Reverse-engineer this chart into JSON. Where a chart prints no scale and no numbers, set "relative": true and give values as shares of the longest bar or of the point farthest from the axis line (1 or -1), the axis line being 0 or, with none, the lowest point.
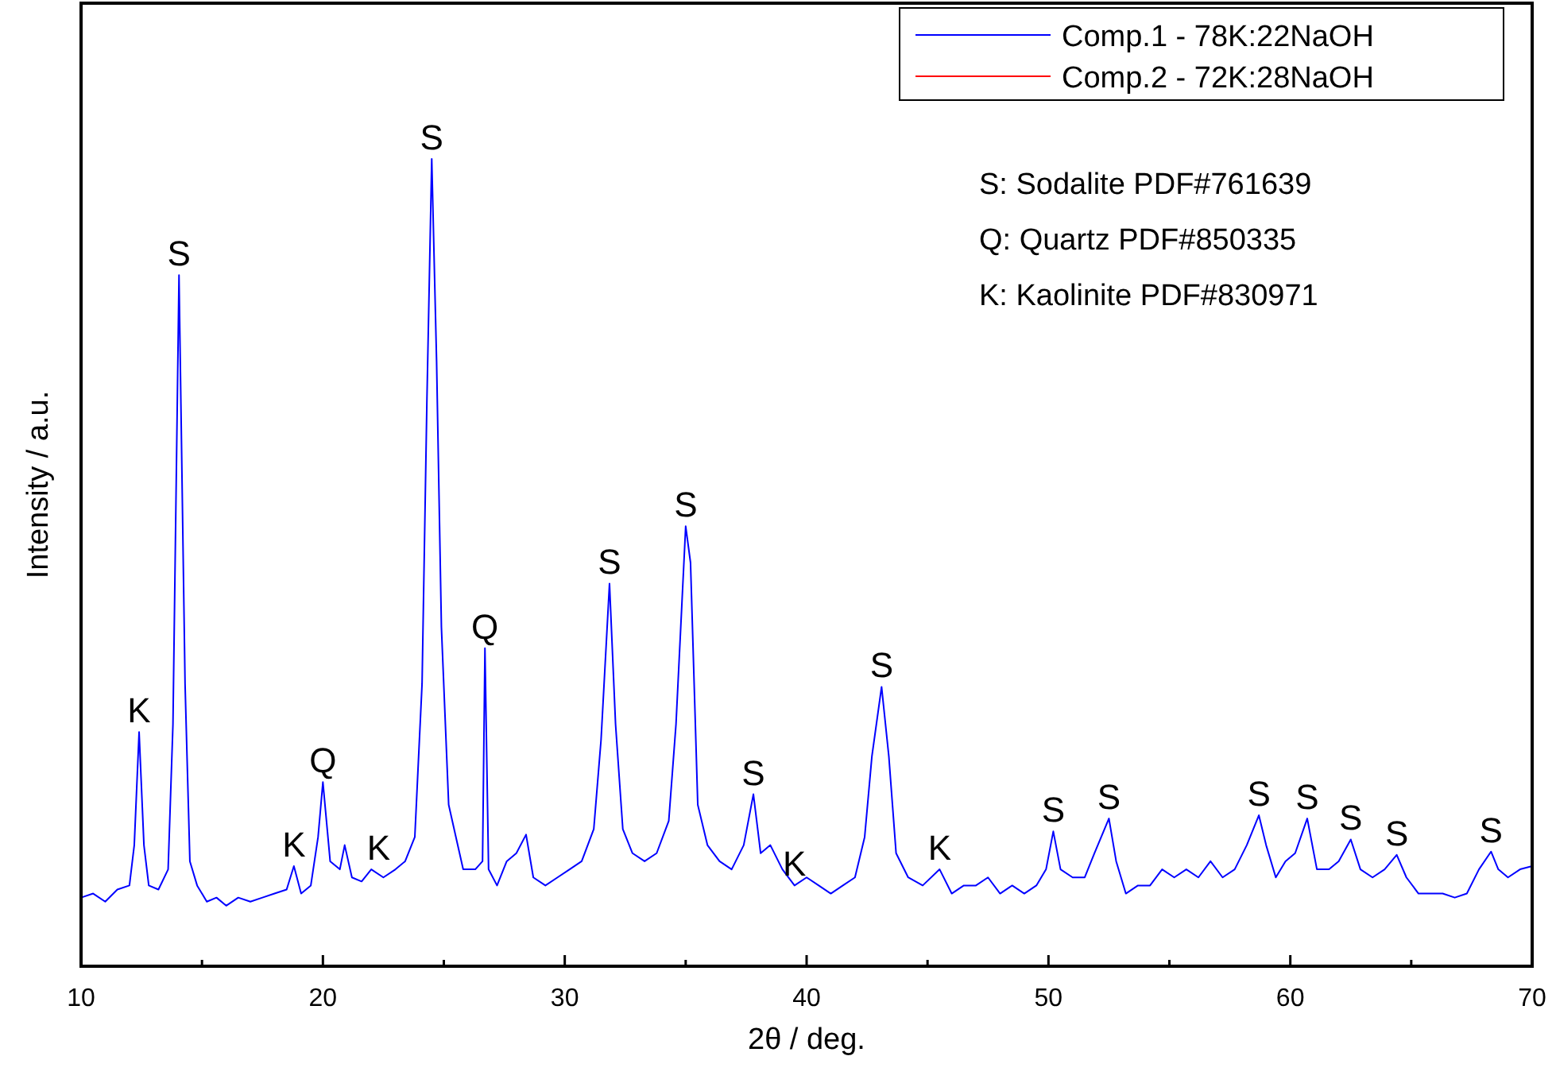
{
  "chart_data": {
    "type": "line",
    "relative": true,
    "xlabel": "2θ / deg.",
    "ylabel": "Intensity / a.u.",
    "xlim": [
      10,
      70
    ],
    "xticks": [
      10,
      {
        "value": 15,
        "label": null
      },
      20,
      {
        "value": 25,
        "label": null
      },
      30,
      {
        "value": 35,
        "label": null
      },
      40,
      {
        "value": 45,
        "label": null
      },
      50,
      {
        "value": 55,
        "label": null
      },
      60,
      {
        "value": 65,
        "label": null
      },
      70
    ],
    "tick_labels": "x",
    "grid": false,
    "legend": "top right",
    "marker": "none",
    "line_style": "solid",
    "series": [
      {
        "name": "Comp.1 - 78K:22NaOH",
        "color": "#0000ff",
        "x": [
          10.0,
          10.5,
          11.0,
          11.5,
          12.0,
          12.2,
          12.4,
          12.6,
          12.8,
          13.2,
          13.6,
          13.8,
          14.05,
          14.3,
          14.5,
          14.8,
          15.2,
          15.6,
          16.0,
          16.5,
          17.0,
          17.5,
          18.0,
          18.5,
          18.8,
          19.1,
          19.5,
          19.8,
          20.0,
          20.3,
          20.7,
          20.9,
          21.2,
          21.6,
          22.0,
          22.5,
          23.0,
          23.4,
          23.8,
          24.1,
          24.3,
          24.5,
          24.7,
          24.9,
          25.2,
          25.5,
          25.8,
          26.3,
          26.6,
          26.7,
          26.85,
          27.2,
          27.6,
          28.0,
          28.4,
          28.7,
          29.2,
          29.7,
          30.2,
          30.7,
          31.2,
          31.5,
          31.85,
          32.1,
          32.4,
          32.8,
          33.3,
          33.8,
          34.3,
          34.6,
          35.0,
          35.2,
          35.5,
          35.9,
          36.4,
          36.9,
          37.4,
          37.8,
          38.1,
          38.5,
          39.0,
          39.5,
          40.0,
          40.5,
          41.0,
          41.5,
          42.0,
          42.4,
          42.7,
          43.1,
          43.4,
          43.7,
          44.2,
          44.8,
          45.5,
          46.0,
          46.5,
          47.0,
          47.5,
          48.0,
          48.5,
          49.0,
          49.5,
          49.9,
          50.2,
          50.5,
          51.0,
          51.5,
          51.9,
          52.5,
          52.8,
          53.2,
          53.7,
          54.2,
          54.7,
          55.2,
          55.7,
          56.2,
          56.7,
          57.2,
          57.7,
          58.2,
          58.7,
          59.0,
          59.4,
          59.8,
          60.2,
          60.7,
          61.1,
          61.6,
          62.0,
          62.5,
          62.9,
          63.4,
          63.9,
          64.4,
          64.8,
          65.3,
          65.8,
          66.3,
          66.8,
          67.3,
          67.8,
          68.3,
          68.6,
          69.0,
          69.5,
          70.0
        ],
        "values": [
          0.085,
          0.09,
          0.08,
          0.095,
          0.1,
          0.15,
          0.29,
          0.15,
          0.1,
          0.095,
          0.12,
          0.3,
          0.856,
          0.35,
          0.13,
          0.1,
          0.08,
          0.085,
          0.075,
          0.085,
          0.08,
          0.085,
          0.09,
          0.095,
          0.124,
          0.09,
          0.1,
          0.16,
          0.228,
          0.13,
          0.12,
          0.15,
          0.11,
          0.105,
          0.12,
          0.11,
          0.12,
          0.13,
          0.16,
          0.35,
          0.7,
          1.0,
          0.75,
          0.42,
          0.2,
          0.16,
          0.12,
          0.12,
          0.13,
          0.394,
          0.12,
          0.1,
          0.13,
          0.14,
          0.163,
          0.11,
          0.1,
          0.11,
          0.12,
          0.13,
          0.17,
          0.28,
          0.474,
          0.3,
          0.17,
          0.14,
          0.13,
          0.14,
          0.18,
          0.3,
          0.545,
          0.5,
          0.2,
          0.15,
          0.13,
          0.12,
          0.15,
          0.213,
          0.14,
          0.15,
          0.12,
          0.1,
          0.11,
          0.1,
          0.09,
          0.1,
          0.11,
          0.16,
          0.26,
          0.346,
          0.26,
          0.14,
          0.11,
          0.1,
          0.12,
          0.09,
          0.1,
          0.1,
          0.11,
          0.09,
          0.1,
          0.09,
          0.1,
          0.12,
          0.167,
          0.12,
          0.11,
          0.11,
          0.14,
          0.183,
          0.13,
          0.09,
          0.1,
          0.1,
          0.12,
          0.11,
          0.12,
          0.11,
          0.13,
          0.11,
          0.12,
          0.15,
          0.187,
          0.15,
          0.11,
          0.13,
          0.14,
          0.183,
          0.12,
          0.12,
          0.13,
          0.157,
          0.12,
          0.11,
          0.12,
          0.138,
          0.11,
          0.09,
          0.09,
          0.09,
          0.085,
          0.09,
          0.12,
          0.142,
          0.12,
          0.11,
          0.12,
          0.124
        ]
      },
      {
        "name": "Comp.2 - 72K:28NaOH",
        "color": "#ff0000"
      }
    ],
    "annotations": [
      {
        "text": "K",
        "x": 12.4,
        "y": 0.29
      },
      {
        "text": "S",
        "x": 14.05,
        "y": 0.856
      },
      {
        "text": "K",
        "x": 18.8,
        "y": 0.124
      },
      {
        "text": "Q",
        "x": 20.0,
        "y": 0.228
      },
      {
        "text": "K",
        "x": 22.3,
        "y": 0.12
      },
      {
        "text": "S",
        "x": 24.5,
        "y": 1.0
      },
      {
        "text": "Q",
        "x": 26.7,
        "y": 0.394
      },
      {
        "text": "S",
        "x": 31.85,
        "y": 0.474
      },
      {
        "text": "S",
        "x": 35.0,
        "y": 0.545
      },
      {
        "text": "S",
        "x": 37.8,
        "y": 0.213
      },
      {
        "text": "K",
        "x": 39.5,
        "y": 0.1
      },
      {
        "text": "S",
        "x": 43.1,
        "y": 0.346
      },
      {
        "text": "K",
        "x": 45.5,
        "y": 0.12
      },
      {
        "text": "S",
        "x": 50.2,
        "y": 0.167
      },
      {
        "text": "S",
        "x": 52.5,
        "y": 0.183
      },
      {
        "text": "S",
        "x": 58.7,
        "y": 0.187
      },
      {
        "text": "S",
        "x": 60.7,
        "y": 0.183
      },
      {
        "text": "S",
        "x": 62.5,
        "y": 0.157
      },
      {
        "text": "S",
        "x": 64.4,
        "y": 0.138
      },
      {
        "text": "S",
        "x": 68.3,
        "y": 0.142
      },
      "S: Sodalite PDF#761639",
      "Q: Quartz PDF#850335",
      "K: Kaolinite PDF#830971"
    ]
  }
}
